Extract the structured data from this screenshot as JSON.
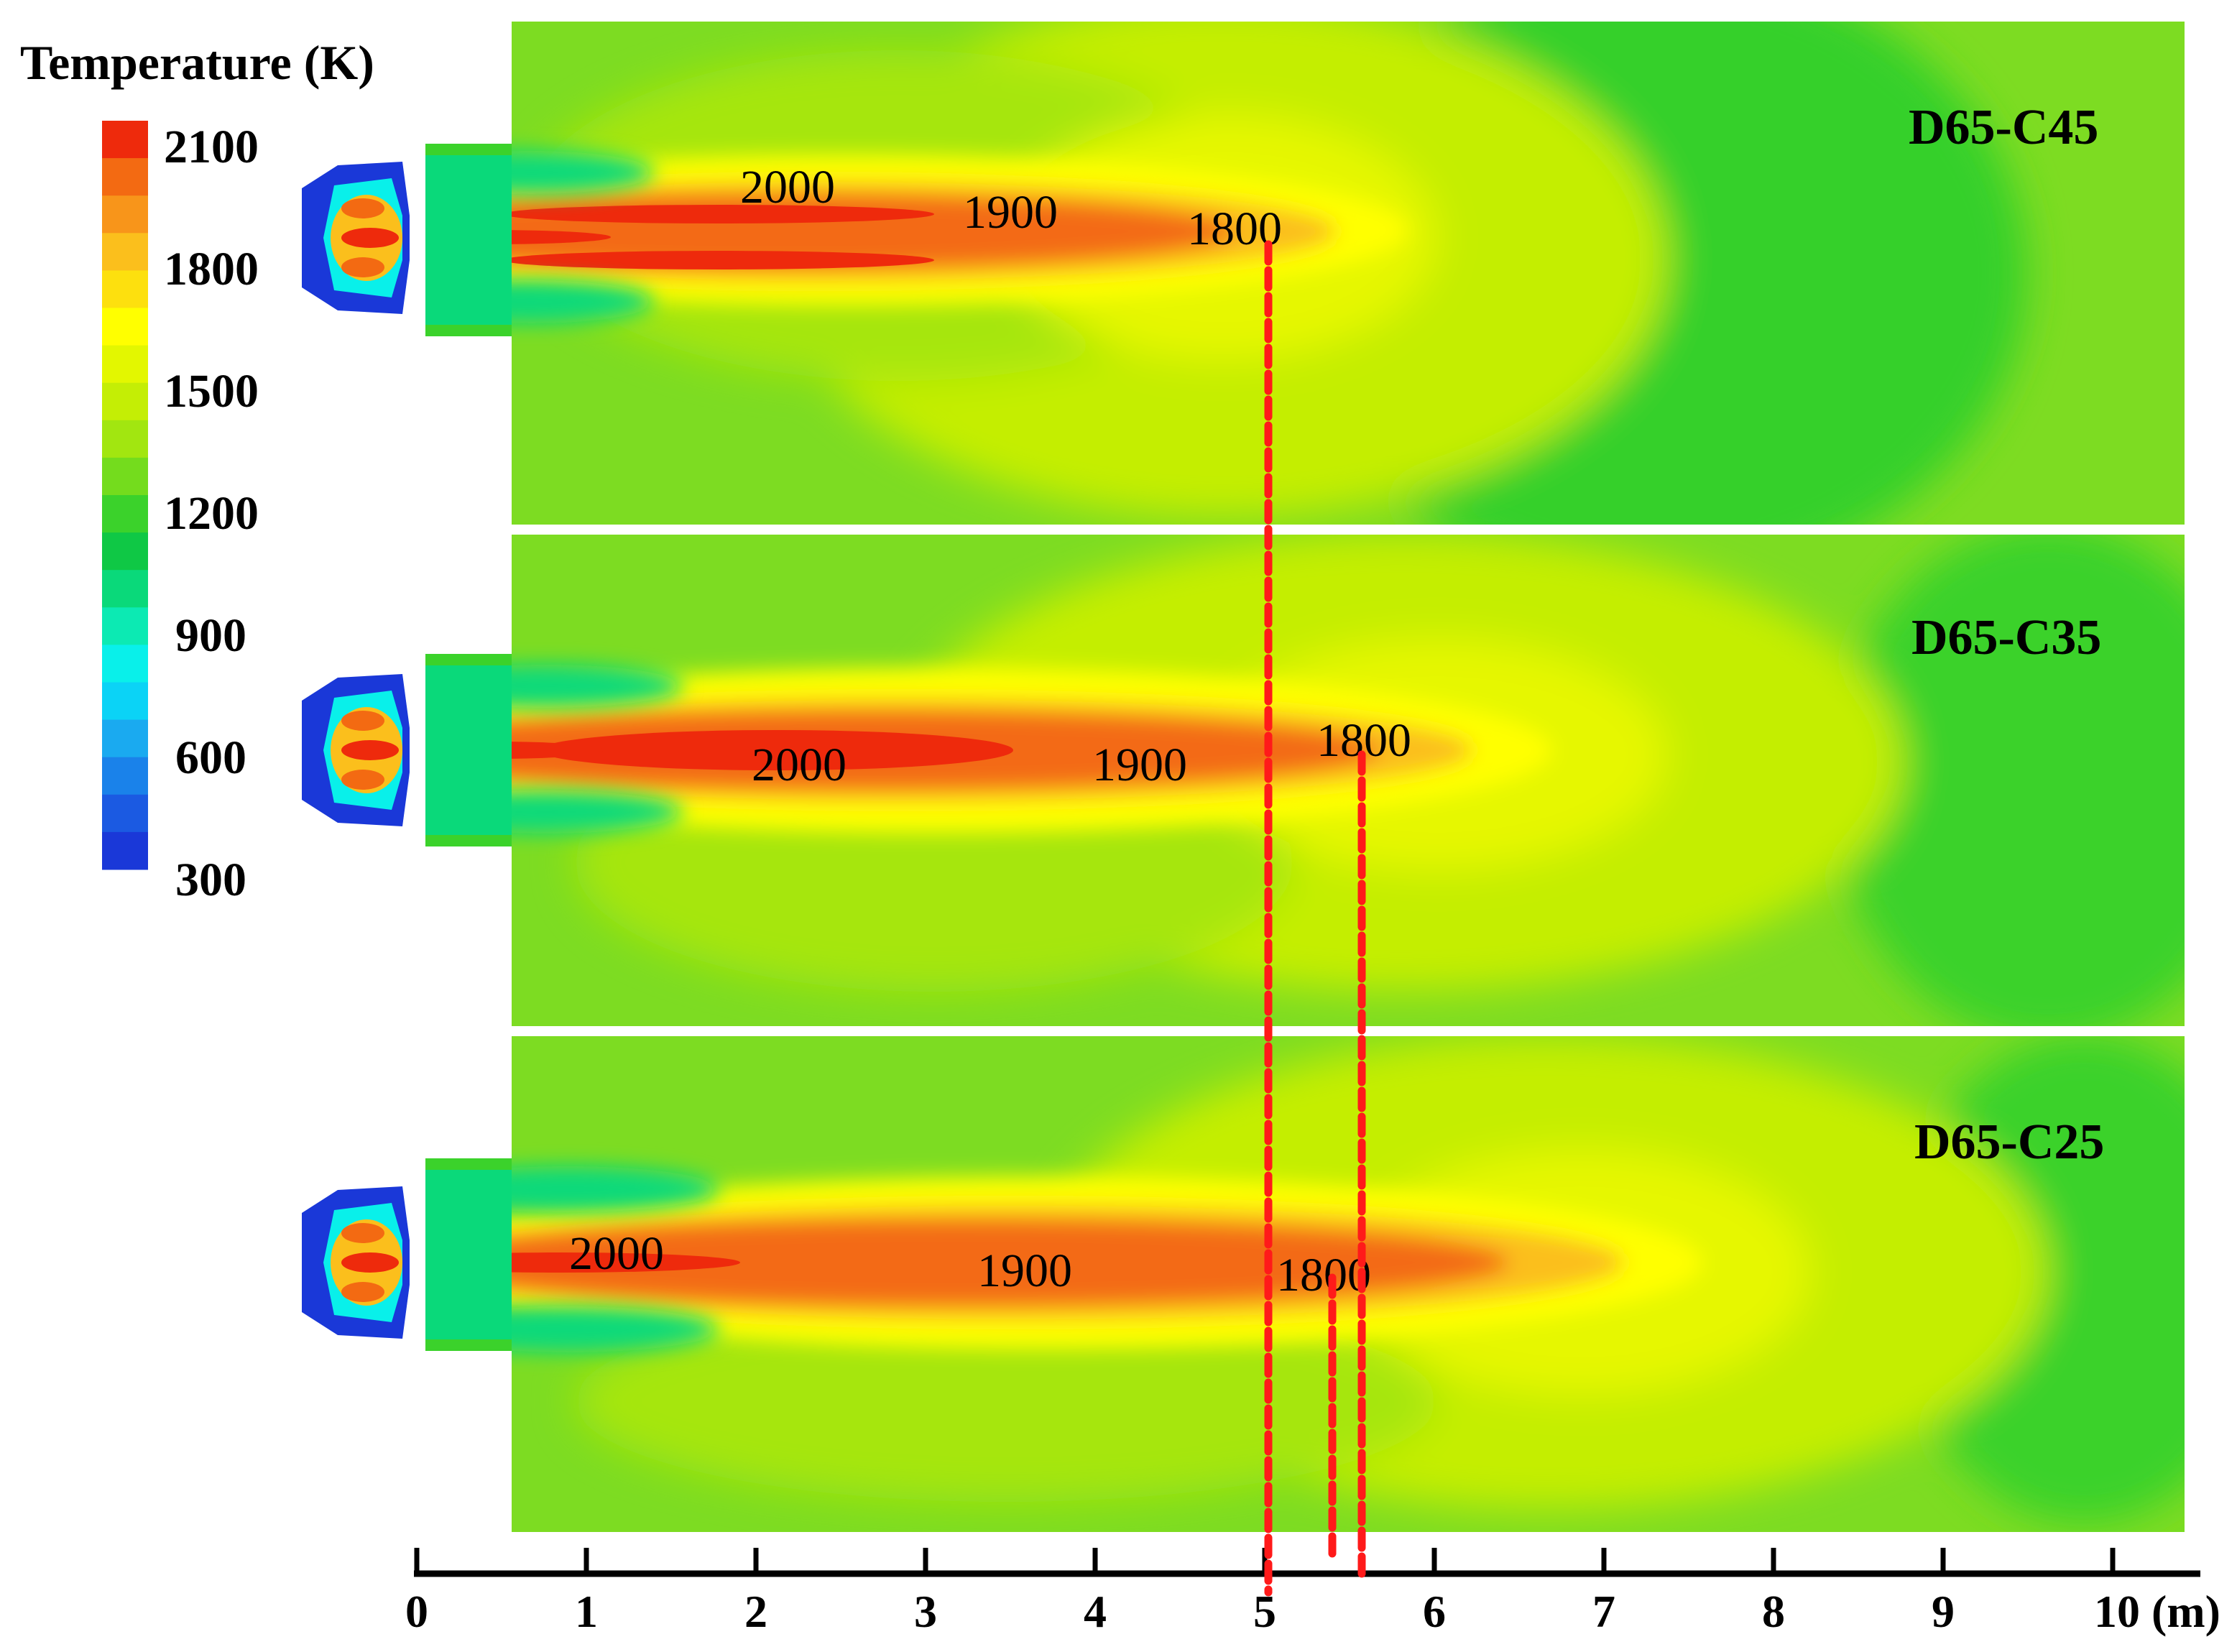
{
  "legend": {
    "title": "Temperature (K)",
    "tick_labels": [
      "2100",
      "1800",
      "1500",
      "1200",
      "900",
      "600",
      "300"
    ],
    "colors": [
      "#ee2a0c",
      "#f36a12",
      "#f8951a",
      "#fbbf1c",
      "#fde00e",
      "#ffff00",
      "#e3f700",
      "#c4ee05",
      "#a2e610",
      "#74dc1d",
      "#3bd22b",
      "#0fc845",
      "#0ad97a",
      "#0ceab3",
      "#09f0ea",
      "#0bd3f6",
      "#1aaaf0",
      "#1a82ea",
      "#1b5ae2",
      "#1a38d8"
    ]
  },
  "panels": [
    {
      "label": "D65-C45",
      "isotherms": [
        "2000",
        "1900",
        "1800"
      ]
    },
    {
      "label": "D65-C35",
      "isotherms": [
        "2000",
        "1900",
        "1800"
      ]
    },
    {
      "label": "D65-C25",
      "isotherms": [
        "2000",
        "1900",
        "1800"
      ]
    }
  ],
  "axis": {
    "tick_labels": [
      "0",
      "1",
      "2",
      "3",
      "4",
      "5",
      "6",
      "7",
      "8",
      "9",
      "10 (m)"
    ],
    "range": [
      0,
      10
    ]
  },
  "markers": {
    "color": "#ff1a1a",
    "positions_m": [
      5.02,
      5.57,
      5.4
    ]
  }
}
